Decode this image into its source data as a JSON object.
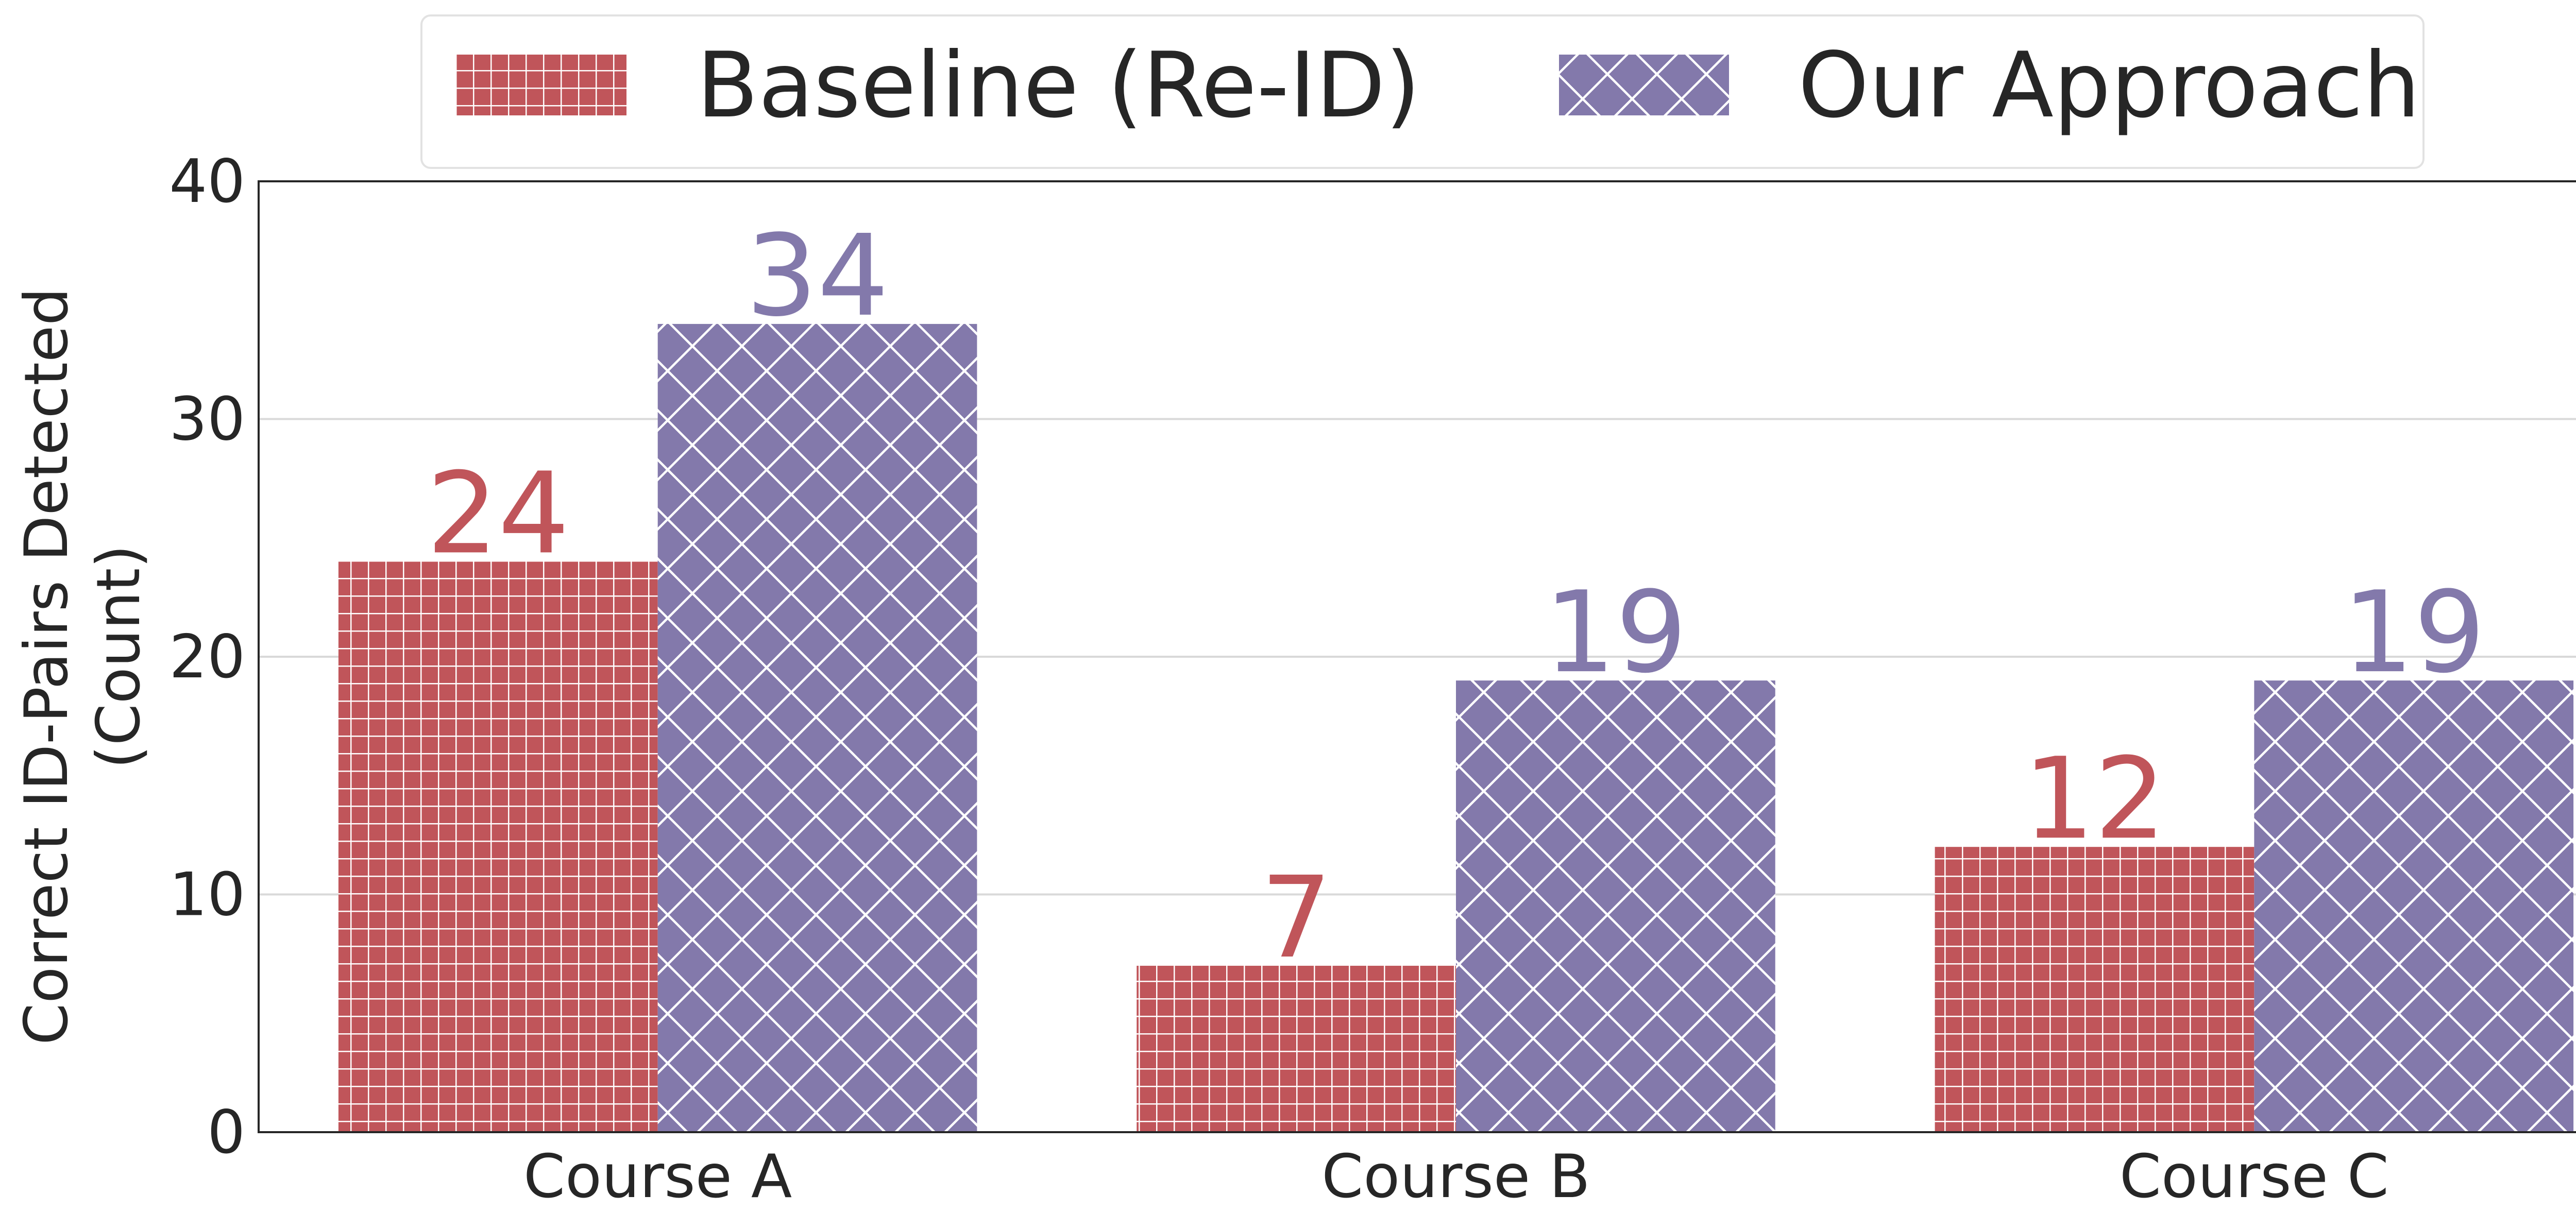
{
  "chart_data": {
    "type": "bar",
    "categories": [
      "Course A",
      "Course B",
      "Course C"
    ],
    "series": [
      {
        "name": "Baseline (Re-ID)",
        "values": [
          24,
          7,
          12
        ],
        "color": "#c0555a",
        "hatch": "grid"
      },
      {
        "name": "Our Approach",
        "values": [
          34,
          19,
          19
        ],
        "color": "#8379ab",
        "hatch": "crosshatch"
      }
    ],
    "title": "",
    "xlabel": "",
    "ylabel": "Correct ID-Pairs Detected (Count)",
    "ylabel_lines": [
      "Correct ID-Pairs Detected",
      "(Count)"
    ],
    "ylim": [
      0,
      40
    ],
    "yticks": [
      0,
      10,
      20,
      30,
      40
    ],
    "grid": "horizontal",
    "legend_position": "top-center",
    "data_labels": true
  }
}
